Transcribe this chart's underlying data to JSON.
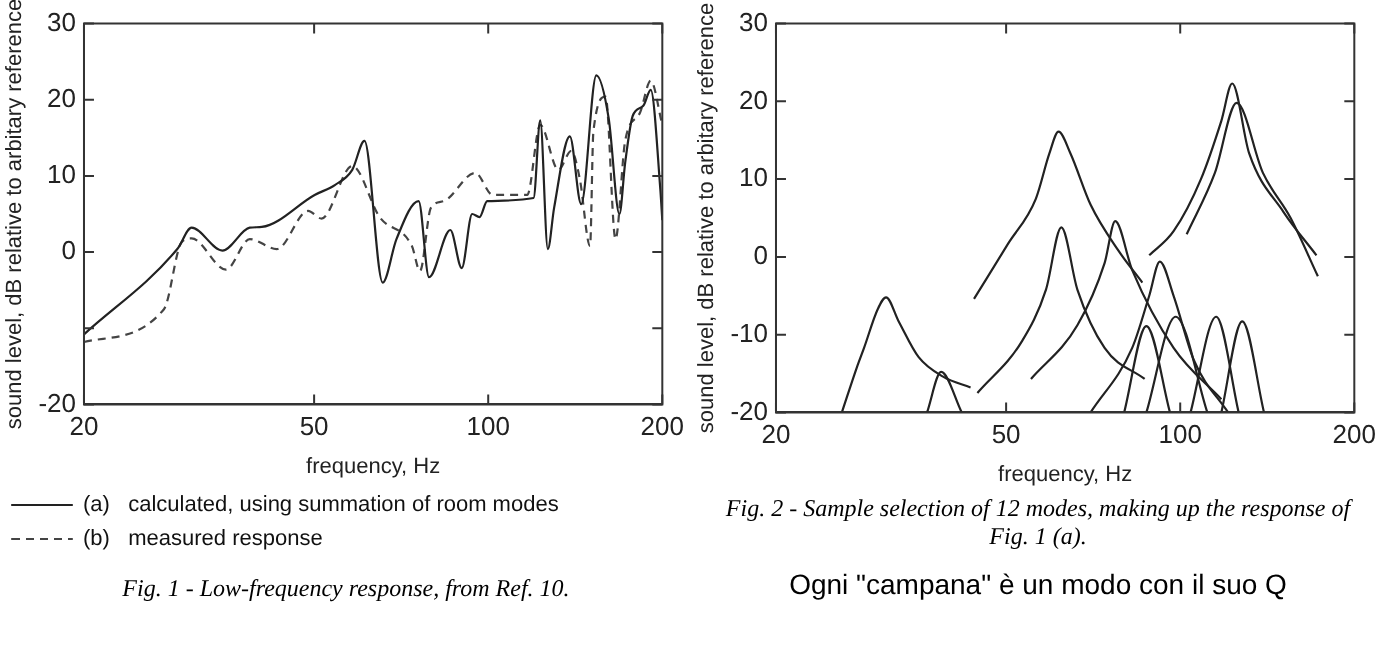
{
  "chart_data": [
    {
      "type": "line",
      "xlabel": "frequency, Hz",
      "ylabel": "sound level, dB relative to arbitary reference",
      "log": "x",
      "grid": false,
      "legend": "bottom",
      "xlim": [
        20,
        200
      ],
      "xticks": [
        20,
        50,
        100,
        200
      ],
      "ylim": [
        -20,
        30
      ],
      "yticks": [
        -20,
        {
          "value": -10,
          "label": null
        },
        0,
        10,
        20,
        30
      ],
      "series": [
        {
          "name": "(a)   calculated, using summation of room modes",
          "color": "#222222",
          "x": [
            20,
            29,
            30.7,
            34.7,
            38.7,
            40.6,
            50.1,
            54.3,
            58.2,
            61.1,
            65.7,
            69.4,
            75.8,
            79,
            86,
            90,
            93.8,
            96.6,
            99.6,
            119.8,
            123,
            126.8,
            130,
            138.4,
            144.8,
            153.8,
            161.6,
            168.6,
            172.5,
            177.8,
            185.4,
            191,
            198.4,
            200
          ],
          "values": [
            -10.8,
            0.4,
            3.2,
            0.2,
            3.2,
            3.3,
            7.5,
            8.8,
            10.8,
            14.6,
            -4,
            1.7,
            6.7,
            -3.3,
            2.9,
            -2.1,
            5,
            4.6,
            6.7,
            7.1,
            17.3,
            0.4,
            5.8,
            15.2,
            6.3,
            23.2,
            17.5,
            5,
            11.7,
            17.9,
            19.2,
            21.3,
            8.3,
            4.2
          ]
        },
        {
          "name": "(b)   measured response",
          "color": "#444444",
          "line_style": "dashed",
          "x": [
            20,
            27.5,
            29.5,
            30.7,
            35.2,
            38.7,
            43.1,
            48.8,
            51.5,
            58.2,
            64.9,
            73.8,
            76.2,
            79.6,
            83.8,
            95,
            101.8,
            116.8,
            123,
            132.2,
            139.2,
            144,
            150,
            152,
            159.6,
            166,
            172.5,
            183,
            191,
            200
          ],
          "values": [
            -11.8,
            -7.5,
            1.3,
            1.8,
            -2.3,
            1.7,
            0.4,
            5.4,
            4.4,
            11.3,
            4.6,
            0.8,
            -2.5,
            5.8,
            6.7,
            10.4,
            7.5,
            7.5,
            16.7,
            10.8,
            13.3,
            9.6,
            0.8,
            15.8,
            20.4,
            1.7,
            14.6,
            18.3,
            22.5,
            16.7
          ]
        }
      ],
      "annotations": [
        "Fig. 1 - Low-frequency response, from Ref. 10."
      ]
    },
    {
      "type": "line",
      "xlabel": "frequency, Hz",
      "ylabel": "sound level, dB relative to arbitary reference",
      "log": "x",
      "grid": false,
      "legend": false,
      "xlim": [
        20,
        200
      ],
      "xticks": [
        20,
        50,
        100,
        200
      ],
      "ylim": [
        -20,
        30
      ],
      "yticks": [
        -20,
        -10,
        0,
        10,
        20,
        30
      ],
      "series": [
        {
          "color": "#222222",
          "x": [
            26,
            27.6,
            28.4,
            30,
            31,
            32.6,
            35.3,
            38.9,
            43.4
          ],
          "values": [
            -20,
            -14.2,
            -11.7,
            -6.7,
            -5.2,
            -8.3,
            -12.9,
            -15.4,
            -16.8
          ]
        },
        {
          "color": "#222222",
          "x": [
            36.5,
            38.6,
            41.9
          ],
          "values": [
            -20,
            -14.8,
            -20
          ]
        },
        {
          "color": "#222222",
          "x": [
            44,
            50.4,
            56.3,
            59.4,
            61.6,
            64.6,
            70,
            78.2,
            86
          ],
          "values": [
            -5.4,
            1.7,
            7.5,
            13.3,
            16.1,
            13.3,
            6.7,
            0.8,
            -3.3
          ]
        },
        {
          "color": "#222222",
          "x": [
            44.6,
            53.3,
            58.6,
            62.3,
            66.4,
            74,
            86.8
          ],
          "values": [
            -17.5,
            -10.8,
            -4.2,
            3.8,
            -4.2,
            -11.7,
            -15.7
          ]
        },
        {
          "color": "#222222",
          "x": [
            55.2,
            66.4,
            74,
            77.2,
            82.6,
            97.4,
            117.8
          ],
          "values": [
            -15.7,
            -8.8,
            -0.8,
            4.6,
            -1.7,
            -11.7,
            -18.3
          ]
        },
        {
          "color": "#222222",
          "x": [
            70,
            82.6,
            88.4,
            92.2,
            97.4,
            105.6,
            121
          ],
          "values": [
            -20,
            -11.7,
            -5,
            -0.6,
            -5,
            -13.3,
            -20
          ]
        },
        {
          "color": "#222222",
          "x": [
            80,
            87.4,
            96
          ],
          "values": [
            -20,
            -8.9,
            -20
          ]
        },
        {
          "color": "#222222",
          "x": [
            87.4,
            98.2,
            111.4
          ],
          "values": [
            -20,
            -7.7,
            -20
          ]
        },
        {
          "color": "#222222",
          "x": [
            104.2,
            115.4,
            126.2
          ],
          "values": [
            -20,
            -7.7,
            -20
          ]
        },
        {
          "color": "#222222",
          "x": [
            117.8,
            128,
            139.6
          ],
          "values": [
            -20,
            -8.3,
            -20
          ]
        },
        {
          "color": "#222222",
          "x": [
            88.4,
            97.4,
            108.6,
            117.8,
            123,
            131.6,
            150.8,
            172
          ],
          "values": [
            0.2,
            3.3,
            10,
            17.5,
            22.3,
            13.3,
            5.8,
            0.2
          ]
        },
        {
          "color": "#222222",
          "x": [
            102.6,
            114.8,
            125.2,
            139,
            155.2,
            173
          ],
          "values": [
            2.9,
            10.8,
            19.8,
            10.8,
            5,
            -2.5
          ]
        }
      ],
      "annotations": [
        "Fig. 2 - Sample selection of 12 modes, making up the response of Fig. 1 (a).",
        "Ogni \"campana\" è un modo con il suo Q"
      ]
    }
  ]
}
